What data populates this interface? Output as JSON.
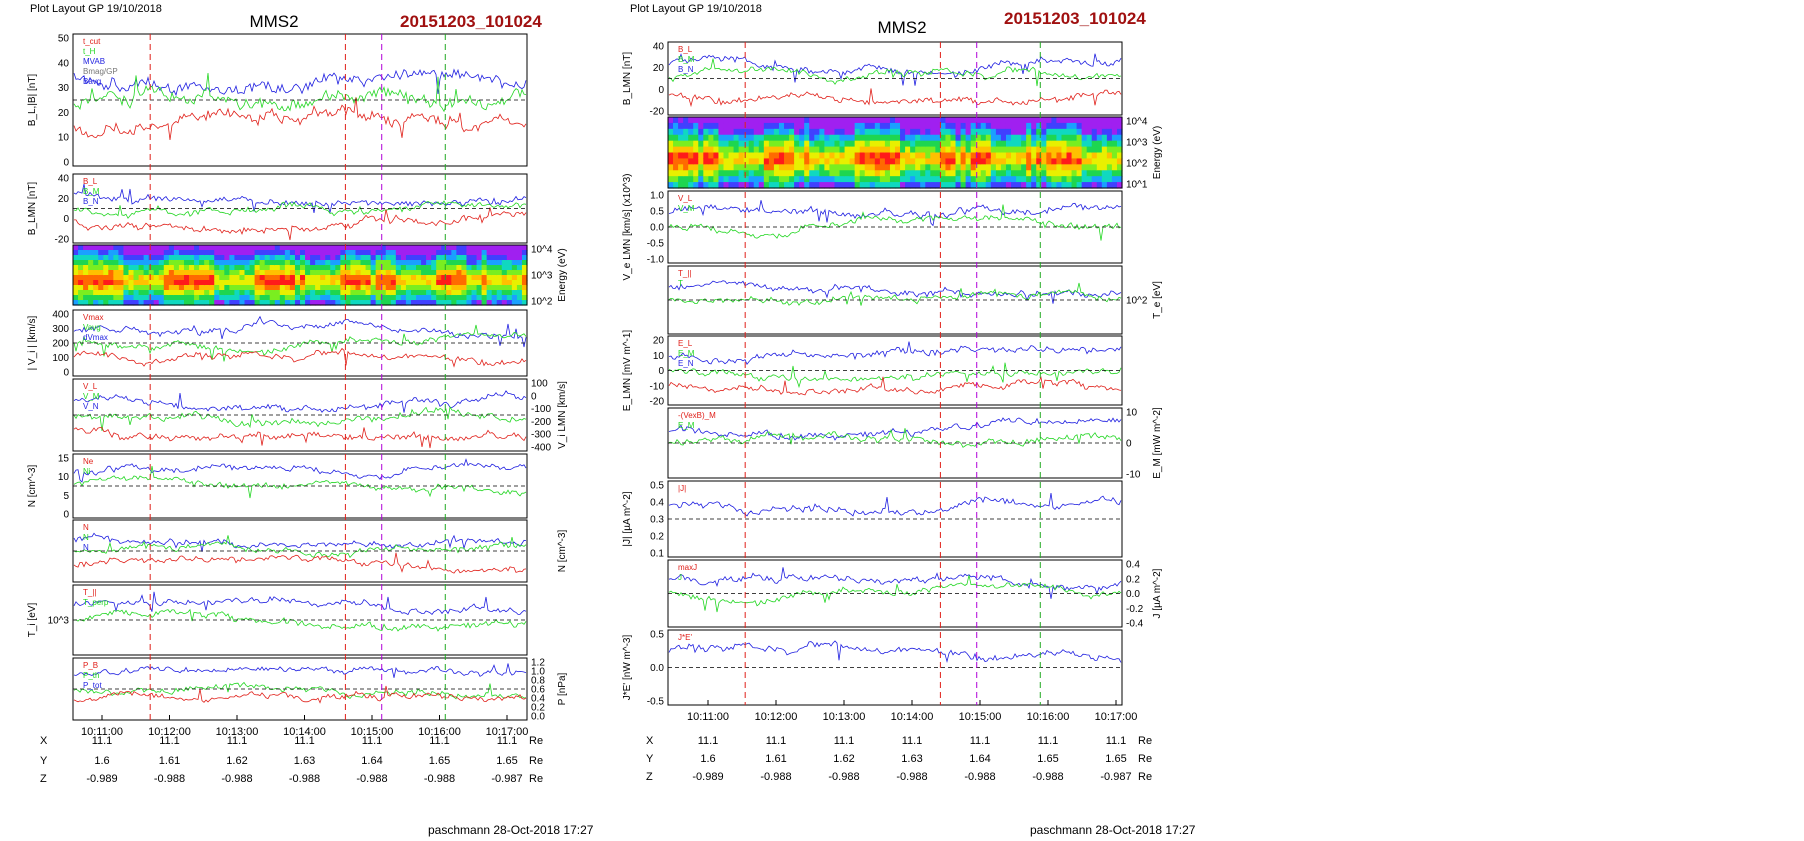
{
  "colors": {
    "black": "#000000",
    "red": "#e0201a",
    "green": "#22d622",
    "blue": "#1f1fe0",
    "gray": "#777777",
    "magenta": "#b000d8",
    "title_red": "#a01010",
    "dark_green": "#22aa22"
  },
  "left": {
    "header": "Plot Layout GP 19/10/2018",
    "spacecraft": "MMS2",
    "event": "20151203_101024",
    "footer": "paschmann 28-Oct-2018 17:27",
    "time_ticks": [
      "10:11:00",
      "10:12:00",
      "10:13:00",
      "10:14:00",
      "10:15:00",
      "10:16:00",
      "10:17:00"
    ],
    "ephemeris": {
      "unit": "Re",
      "rows": [
        {
          "name": "X",
          "values": [
            "11.1",
            "11.1",
            "11.1",
            "11.1",
            "11.1",
            "11.1",
            "11.1"
          ]
        },
        {
          "name": "Y",
          "values": [
            "1.6",
            "1.61",
            "1.62",
            "1.63",
            "1.64",
            "1.65",
            "1.65"
          ]
        },
        {
          "name": "Z",
          "values": [
            "-0.989",
            "-0.988",
            "-0.988",
            "-0.988",
            "-0.988",
            "-0.988",
            "-0.987"
          ]
        }
      ]
    },
    "panels": [
      {
        "ylabel": "B_L,|B| [nT]",
        "side": "left",
        "ticks": [
          "50",
          "40",
          "30",
          "20",
          "10",
          "0"
        ],
        "legend": [
          "t_cut",
          "t_H",
          "MVAB",
          "Bmag/GP",
          "Bavg"
        ]
      },
      {
        "ylabel": "B_LMN [nT]",
        "side": "left",
        "ticks": [
          "40",
          "20",
          "0",
          "-20"
        ],
        "legend": [
          "B_L",
          "B_M",
          "B_N"
        ]
      },
      {
        "ylabel": "Energy (eV)",
        "side": "right",
        "ticks": [
          "10^4",
          "10^3",
          "10^2"
        ],
        "legend": []
      },
      {
        "ylabel": "| V_i | [km/s]",
        "side": "left",
        "ticks": [
          "400",
          "300",
          "200",
          "100",
          "0"
        ],
        "legend": [
          "Vmax",
          "Vavg",
          "dVmax"
        ]
      },
      {
        "ylabel": "V_i LMN [km/s]",
        "side": "right",
        "ticks": [
          "100",
          "0",
          "-100",
          "-200",
          "-300",
          "-400"
        ],
        "legend": [
          "V_L",
          "V_M",
          "V_N"
        ]
      },
      {
        "ylabel": "N [cm^-3]",
        "side": "left",
        "ticks": [
          "15",
          "10",
          "5",
          "0"
        ],
        "legend": [
          "Ne",
          "Ni"
        ]
      },
      {
        "ylabel": "N [cm^-3]",
        "side": "right",
        "ticks": [],
        "legend": [
          "N",
          "N",
          "N"
        ]
      },
      {
        "ylabel": "T_i [eV]",
        "side": "left",
        "ticks": [
          "10^3"
        ],
        "legend": [
          "T_||",
          "T_perp"
        ]
      },
      {
        "ylabel": "P [nPa]",
        "side": "right",
        "ticks": [
          "1.2",
          "1.0",
          "0.8",
          "0.6",
          "0.4",
          "0.2",
          "0.0"
        ],
        "legend": [
          "P_B",
          "P_th",
          "P_tot"
        ]
      }
    ]
  },
  "right": {
    "header": "Plot Layout GP 19/10/2018",
    "spacecraft": "MMS2",
    "event": "20151203_101024",
    "footer": "paschmann 28-Oct-2018 17:27",
    "time_ticks": [
      "10:11:00",
      "10:12:00",
      "10:13:00",
      "10:14:00",
      "10:15:00",
      "10:16:00",
      "10:17:00"
    ],
    "ephemeris": {
      "unit": "Re",
      "rows": [
        {
          "name": "X",
          "values": [
            "11.1",
            "11.1",
            "11.1",
            "11.1",
            "11.1",
            "11.1",
            "11.1"
          ]
        },
        {
          "name": "Y",
          "values": [
            "1.6",
            "1.61",
            "1.62",
            "1.63",
            "1.64",
            "1.65",
            "1.65"
          ]
        },
        {
          "name": "Z",
          "values": [
            "-0.989",
            "-0.988",
            "-0.988",
            "-0.988",
            "-0.988",
            "-0.988",
            "-0.987"
          ]
        }
      ]
    },
    "panels": [
      {
        "ylabel": "B_LMN [nT]",
        "side": "left",
        "ticks": [
          "40",
          "20",
          "0",
          "-20"
        ],
        "legend": [
          "B_L",
          "B_M",
          "B_N"
        ]
      },
      {
        "ylabel": "Energy (eV)",
        "side": "right",
        "ticks": [
          "10^4",
          "10^3",
          "10^2",
          "10^1"
        ],
        "legend": []
      },
      {
        "ylabel": "V_e LMN [km/s] (x10^3)",
        "side": "left",
        "ticks": [
          "1.0",
          "0.5",
          "0.0",
          "-0.5",
          "-1.0"
        ],
        "legend": [
          "V_L",
          "V_M"
        ]
      },
      {
        "ylabel": "T_e [eV]",
        "side": "right",
        "ticks": [
          "10^2"
        ],
        "legend": [
          "T_||",
          "T"
        ]
      },
      {
        "ylabel": "E_LMN [mV m^-1]",
        "side": "left",
        "ticks": [
          "20",
          "10",
          "0",
          "-10",
          "-20"
        ],
        "legend": [
          "E_L",
          "E_M",
          "E_N"
        ]
      },
      {
        "ylabel": "E_M [mW m^-2]",
        "side": "right",
        "ticks": [
          "10",
          "0",
          "-10"
        ],
        "legend": [
          "-(VexB)_M",
          "E_M"
        ]
      },
      {
        "ylabel": "|J| [µA m^-2]",
        "side": "left",
        "ticks": [
          "0.5",
          "0.4",
          "0.3",
          "0.2",
          "0.1"
        ],
        "legend": [
          "|J|"
        ]
      },
      {
        "ylabel": "J [µA m^-2]",
        "side": "right",
        "ticks": [
          "0.4",
          "0.2",
          "0.0",
          "-0.2",
          "-0.4"
        ],
        "legend": [
          "maxJ",
          "J"
        ]
      },
      {
        "ylabel": "J*E' [nW m^-3]",
        "side": "left",
        "ticks": [
          "0.5",
          "0.0",
          "-0.5"
        ],
        "legend": [
          "J*E'"
        ]
      }
    ]
  }
}
